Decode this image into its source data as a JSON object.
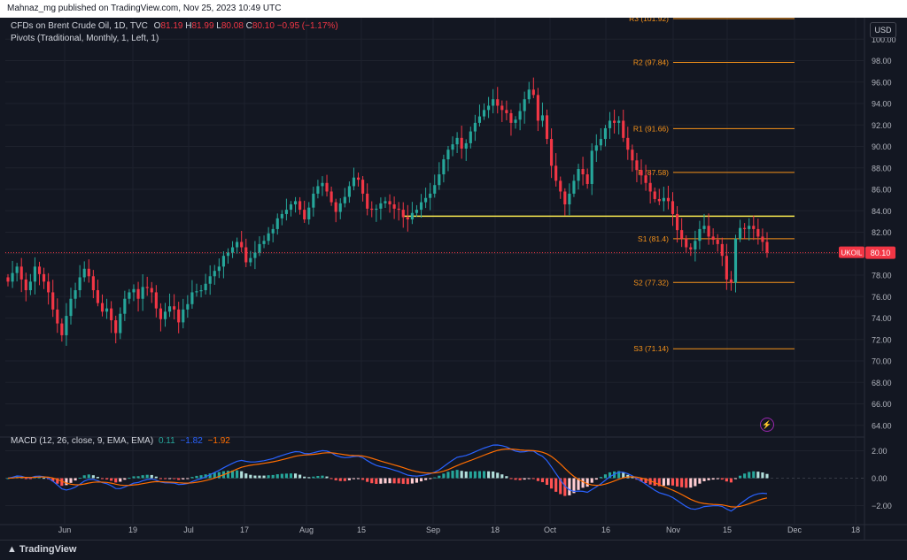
{
  "header": {
    "publish_line": "Mahnaz_mg published on TradingView.com, Nov 25, 2023 10:49 UTC"
  },
  "legend": {
    "symbol": "CFDs on Brent Crude Oil, 1D, TVC",
    "open_label": "O",
    "open": "81.19",
    "high_label": "H",
    "high": "81.99",
    "low_label": "L",
    "low": "80.08",
    "close_label": "C",
    "close": "80.10",
    "change": "−0.95 (−1.17%)",
    "pivots": "Pivots (Traditional, Monthly, 1, Left, 1)",
    "macd_name": "MACD (12, 26, close, 9, EMA, EMA)",
    "macd_hist": "0.11",
    "macd_line": "−1.82",
    "macd_signal": "−1.92"
  },
  "currency_button": "USD",
  "footer": {
    "brand": "TradingView"
  },
  "colors": {
    "background": "#131722",
    "up": "#26a69a",
    "down": "#f23645",
    "pivot": "#f7931a",
    "support_line": "#f7e84f",
    "macd_line": "#2962ff",
    "signal_line": "#ff6d00"
  },
  "chart_data": [
    {
      "type": "candlestick",
      "title": "CFDs on Brent Crude Oil, 1D, TVC",
      "x_ticks": [
        "Jun",
        "19",
        "Jul",
        "17",
        "Aug",
        "15",
        "Sep",
        "18",
        "Oct",
        "16",
        "Nov",
        "15",
        "Dec",
        "18"
      ],
      "y_ticks": [
        "64.00",
        "66.00",
        "68.00",
        "70.00",
        "72.00",
        "74.00",
        "76.00",
        "78.00",
        "80.00",
        "82.00",
        "84.00",
        "86.00",
        "88.00",
        "90.00",
        "92.00",
        "94.00",
        "96.00",
        "98.00",
        "100.00"
      ],
      "ylim": [
        64,
        100
      ],
      "last_price": {
        "label": "UKOIL",
        "value": 80.1,
        "text": "80.10"
      },
      "support_level": 83.5,
      "pivots": [
        {
          "label": "R3 (101.92)",
          "value": 101.92
        },
        {
          "label": "R2 (97.84)",
          "value": 97.84
        },
        {
          "label": "R1 (91.66)",
          "value": 91.66
        },
        {
          "label": "P (87.58)",
          "value": 87.58
        },
        {
          "label": "S1 (81.4)",
          "value": 81.4
        },
        {
          "label": "S2 (77.32)",
          "value": 77.32
        },
        {
          "label": "S3 (71.14)",
          "value": 71.14
        }
      ],
      "close": [
        77.4,
        78.2,
        78.8,
        77.6,
        76.6,
        77.4,
        78.8,
        78.1,
        77.4,
        76.4,
        74.8,
        73.5,
        72.4,
        74.2,
        75.8,
        76.6,
        77.8,
        78.6,
        77.9,
        76.6,
        75.4,
        74.6,
        74.9,
        73.8,
        72.6,
        74.4,
        75.8,
        76.4,
        76.7,
        75.8,
        76.9,
        76.8,
        76.4,
        74.9,
        73.9,
        74.6,
        75.1,
        74.8,
        73.6,
        74.8,
        75.3,
        76.4,
        76.5,
        76.6,
        77.2,
        77.9,
        78.4,
        78.8,
        79.8,
        80.1,
        80.6,
        81.1,
        80.6,
        79.2,
        79.6,
        80.1,
        80.9,
        81.2,
        81.9,
        82.3,
        83.3,
        83.7,
        84.1,
        84.6,
        84.9,
        84.1,
        83.2,
        84.3,
        85.6,
        86.3,
        86.6,
        85.8,
        84.8,
        83.9,
        84.7,
        85.3,
        86.3,
        87.1,
        86.9,
        85.6,
        84.2,
        84.1,
        84.2,
        84.7,
        84.9,
        84.6,
        84.2,
        84.1,
        83.4,
        83.2,
        83.8,
        84.1,
        84.8,
        85.2,
        85.6,
        86.4,
        87.4,
        88.8,
        89.7,
        90.2,
        90.8,
        89.8,
        90.3,
        91.4,
        92.2,
        92.8,
        93.4,
        93.8,
        94.4,
        93.8,
        93.4,
        93.1,
        92.2,
        92.5,
        93.3,
        94.4,
        95.3,
        94.8,
        92.4,
        92.9,
        90.7,
        88.2,
        86.8,
        85.8,
        84.6,
        85.6,
        86.8,
        87.9,
        87.4,
        86.5,
        89.6,
        90.1,
        90.7,
        91.7,
        92.4,
        92.2,
        92.4,
        90.8,
        89.7,
        88.7,
        87.8,
        87.3,
        86.6,
        85.8,
        85.1,
        84.9,
        85.2,
        84.9,
        83.7,
        82.2,
        81.4,
        80.6,
        80.4,
        81.2,
        82.3,
        82.6,
        81.6,
        81.3,
        80.9,
        79.8,
        77.6,
        77.3,
        81.4,
        82.4,
        82.3,
        82.6,
        82.3,
        81.6,
        81.1,
        80.1
      ]
    },
    {
      "type": "histogram",
      "title": "MACD (12, 26, close, 9, EMA, EMA)",
      "y_ticks": [
        "2.00",
        "0.00",
        "−2.00"
      ],
      "ylim": [
        -3,
        3
      ],
      "series": [
        {
          "name": "MACD",
          "values": [
            -1.82
          ]
        },
        {
          "name": "Signal",
          "values": [
            -1.92
          ]
        },
        {
          "name": "Histogram",
          "values": [
            0.11
          ]
        }
      ]
    }
  ]
}
